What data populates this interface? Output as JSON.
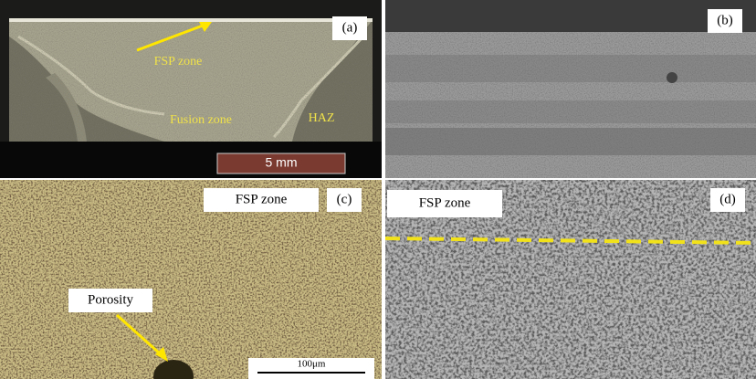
{
  "panels": [
    {
      "label": "(a)",
      "annotations": [
        "FSP zone",
        "Fusion zone",
        "HAZ"
      ],
      "scale_bar": "5 mm"
    },
    {
      "label": "(b)"
    },
    {
      "label": "(c)",
      "annotations": [
        "FSP zone",
        "Porosity"
      ],
      "scale_bar": "100μm"
    },
    {
      "label": "(d)",
      "annotations": [
        "FSP zone"
      ]
    }
  ]
}
